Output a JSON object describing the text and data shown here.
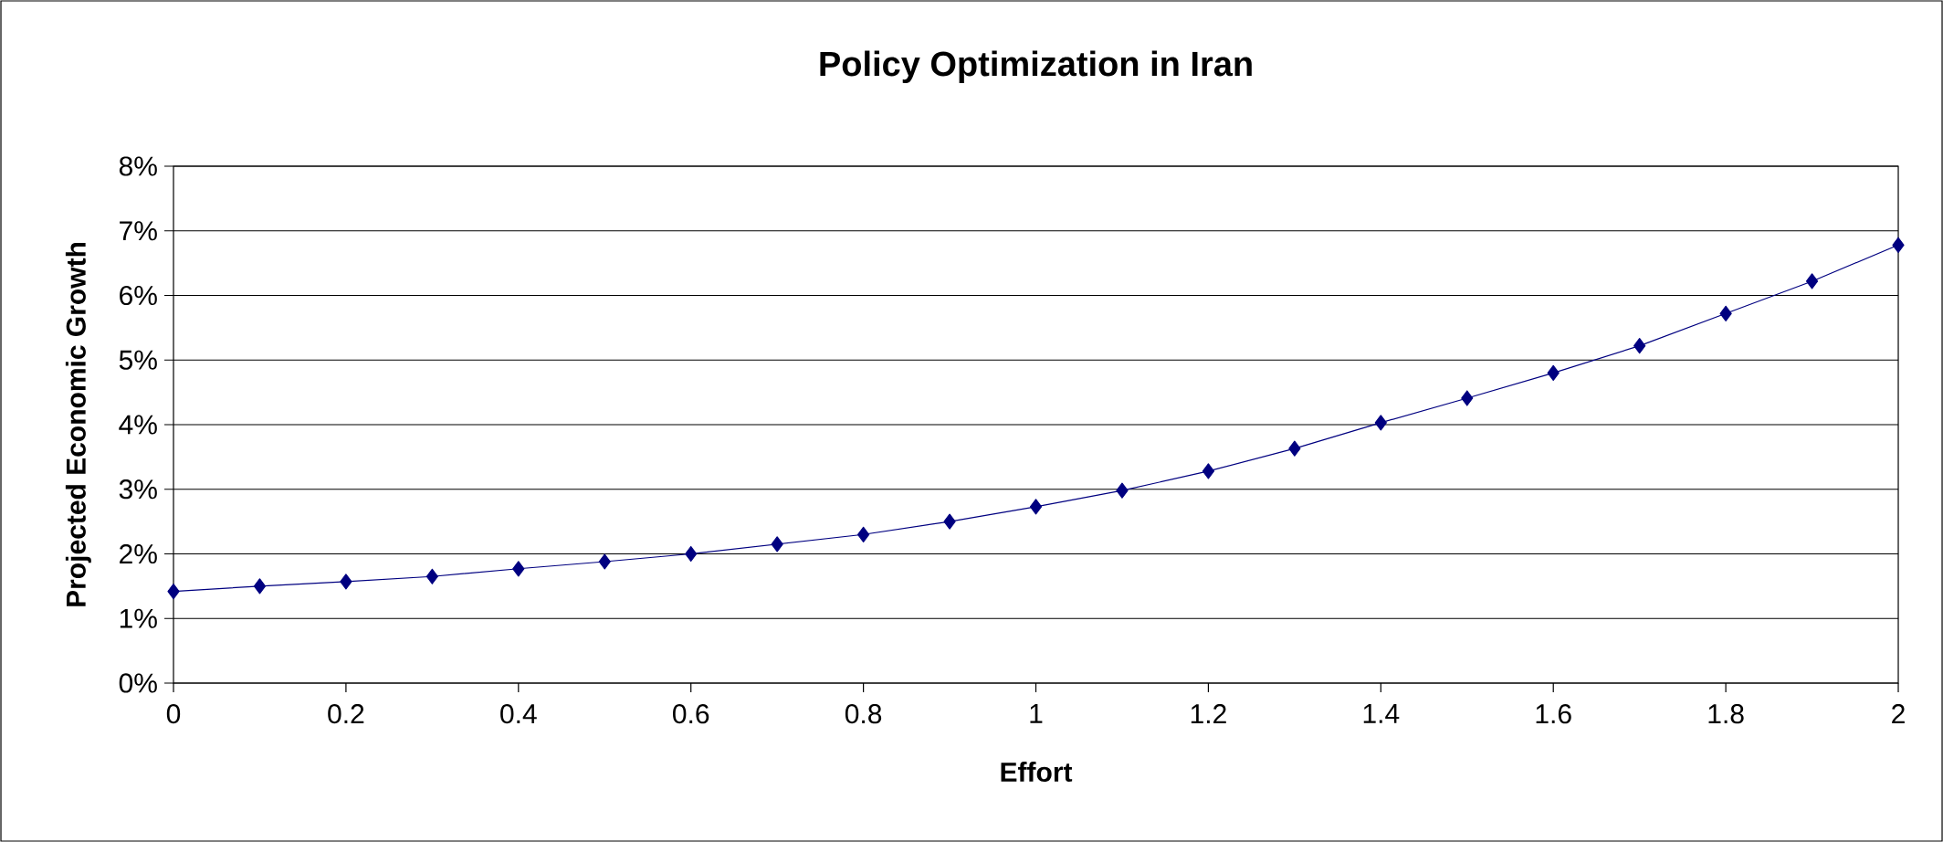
{
  "chart_data": {
    "type": "line",
    "title": "Policy Optimization in Iran",
    "xlabel": "Effort",
    "ylabel": "Projected Economic Growth",
    "x": [
      0,
      0.1,
      0.2,
      0.3,
      0.4,
      0.5,
      0.6,
      0.7,
      0.8,
      0.9,
      1.0,
      1.1,
      1.2,
      1.3,
      1.4,
      1.5,
      1.6,
      1.7,
      1.8,
      1.9,
      2.0
    ],
    "values": [
      1.42,
      1.5,
      1.57,
      1.65,
      1.77,
      1.88,
      2.0,
      2.15,
      2.3,
      2.5,
      2.73,
      2.98,
      3.28,
      3.63,
      4.03,
      4.41,
      4.8,
      5.22,
      5.72,
      6.22,
      6.78
    ],
    "color": "#000080",
    "marker": "diamond",
    "grid": "y",
    "xlim": [
      0,
      2
    ],
    "xticks": [
      0,
      0.2,
      0.4,
      0.6,
      0.8,
      1,
      1.2,
      1.4,
      1.6,
      1.8,
      2
    ],
    "ylim": [
      0,
      8
    ],
    "yticks": [
      {
        "value": 0,
        "label": "0%"
      },
      {
        "value": 1,
        "label": "1%"
      },
      {
        "value": 2,
        "label": "2%"
      },
      {
        "value": 3,
        "label": "3%"
      },
      {
        "value": 4,
        "label": "4%"
      },
      {
        "value": 5,
        "label": "5%"
      },
      {
        "value": 6,
        "label": "6%"
      },
      {
        "value": 7,
        "label": "7%"
      },
      {
        "value": 8,
        "label": "8%"
      }
    ]
  }
}
